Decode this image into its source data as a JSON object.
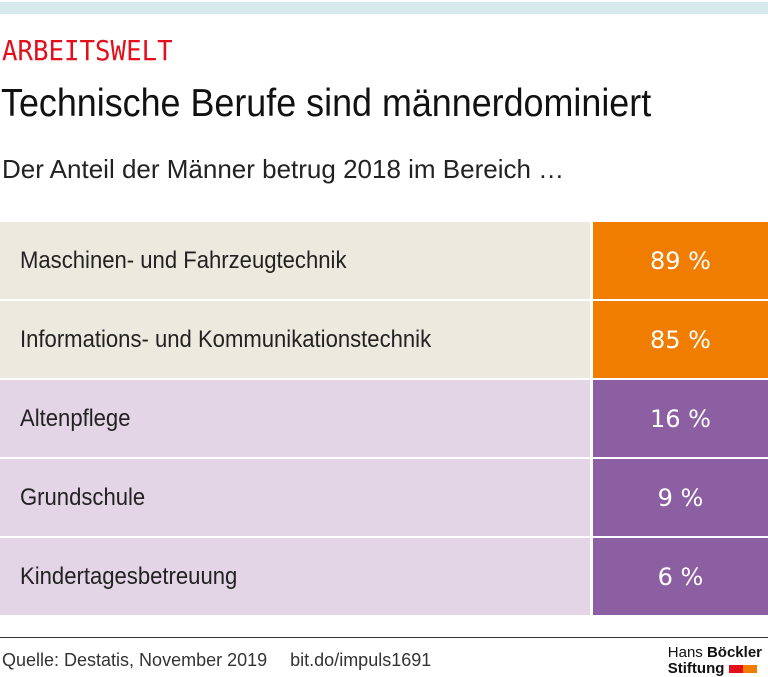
{
  "kicker": "ARBEITSWELT",
  "title": "Technische Berufe sind männerdominiert",
  "subtitle": "Der Anteil der Männer betrug 2018 im Bereich …",
  "chart_data": {
    "type": "table",
    "categories": [
      "Maschinen- und Fahrzeugtechnik",
      "Informations- und Kommunikationstechnik",
      "Altenpflege",
      "Grundschule",
      "Kindertagesbetreuung"
    ],
    "values": [
      89,
      85,
      16,
      9,
      6
    ],
    "value_labels": [
      "89 %",
      "85 %",
      "16 %",
      "9 %",
      "6 %"
    ],
    "unit": "%",
    "colors": {
      "high_label_bg": "#eceade",
      "high_value_bg": "#f07d00",
      "low_label_bg": "#e3d5e6",
      "low_value_bg": "#8c5fa3"
    }
  },
  "footer": {
    "source": "Quelle: Destatis, November 2019",
    "link": "bit.do/impuls1691"
  },
  "logo": {
    "line1a": "Hans",
    "line1b": "Böckler",
    "line2": "Stiftung",
    "colors": [
      "#e3101b",
      "#f07d00"
    ]
  }
}
